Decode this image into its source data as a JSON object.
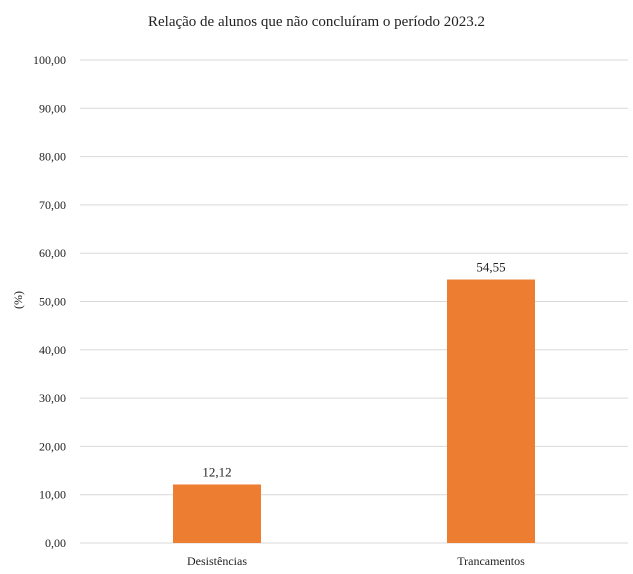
{
  "chart_data": {
    "type": "bar",
    "title": "Relação de alunos que não concluíram o período 2023.2",
    "categories": [
      "Desistências",
      "Trancamentos"
    ],
    "values": [
      12.12,
      54.55
    ],
    "data_labels": [
      "12,12",
      "54,55"
    ],
    "xlabel": "",
    "ylabel": "(%)",
    "ylim": [
      0,
      100
    ],
    "y_ticks": [
      "0,00",
      "10,00",
      "20,00",
      "30,00",
      "40,00",
      "50,00",
      "60,00",
      "70,00",
      "80,00",
      "90,00",
      "100,00"
    ],
    "grid": true,
    "legend": "none"
  },
  "colors": {
    "bar": "#ED7D31",
    "grid": "#D9D9D9",
    "text": "#222222"
  }
}
